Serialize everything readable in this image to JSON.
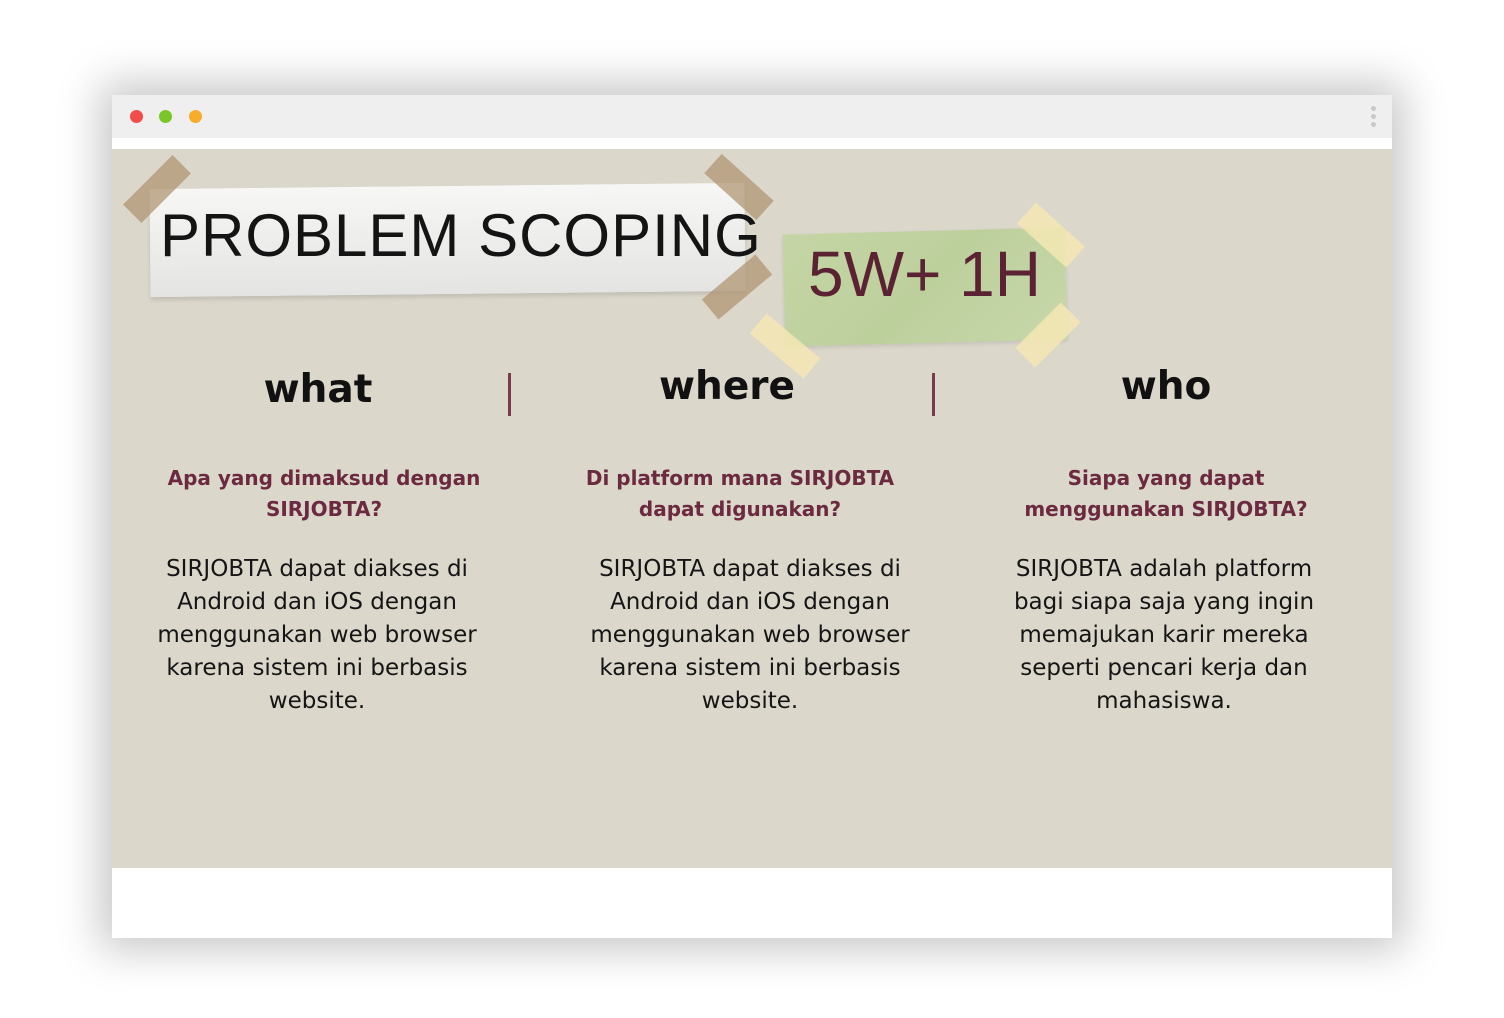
{
  "window": {
    "controls": [
      "close",
      "minimize",
      "zoom"
    ],
    "colors": {
      "close": "#f44b4b",
      "minimize": "#7ac527",
      "zoom": "#f7ad2b"
    }
  },
  "slide": {
    "title": "PROBLEM SCOPING",
    "subtitle": "5W+ 1H",
    "background": "#dbd7cb",
    "accent": "#6b2a40",
    "columns": [
      {
        "heading": "what",
        "question": "Apa yang dimaksud dengan SIRJOBTA?",
        "answer": "SIRJOBTA dapat diakses di Android dan iOS dengan menggunakan web browser karena sistem ini berbasis website."
      },
      {
        "heading": "where",
        "question": "Di platform mana SIRJOBTA dapat digunakan?",
        "answer": "SIRJOBTA dapat diakses di Android dan iOS dengan menggunakan web browser karena sistem ini berbasis website."
      },
      {
        "heading": "who",
        "question": "Siapa yang dapat menggunakan SIRJOBTA?",
        "answer": "SIRJOBTA adalah platform bagi siapa saja yang ingin memajukan karir mereka seperti pencari kerja dan mahasiswa."
      }
    ]
  }
}
